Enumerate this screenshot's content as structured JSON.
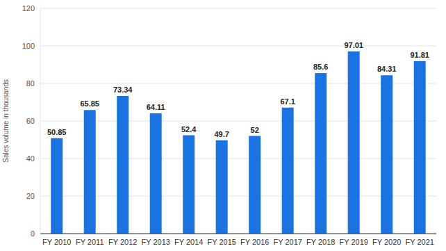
{
  "chart_data": {
    "type": "bar",
    "y_label": "Sales volume in thousands",
    "categories": [
      "FY 2010",
      "FY 2011",
      "FY 2012",
      "FY 2013",
      "FY 2014",
      "FY 2015",
      "FY 2016",
      "FY 2017",
      "FY 2018",
      "FY 2019",
      "FY 2020",
      "FY 2021"
    ],
    "values": [
      50.85,
      65.85,
      73.34,
      64.11,
      52.4,
      49.7,
      52,
      67.1,
      85.6,
      97.01,
      84.31,
      91.81
    ],
    "color": "#1a73e0",
    "ylim": [
      0,
      120
    ],
    "yticks": [
      0,
      20,
      40,
      60,
      80,
      100,
      120
    ],
    "grid": true,
    "data_labels": true
  }
}
